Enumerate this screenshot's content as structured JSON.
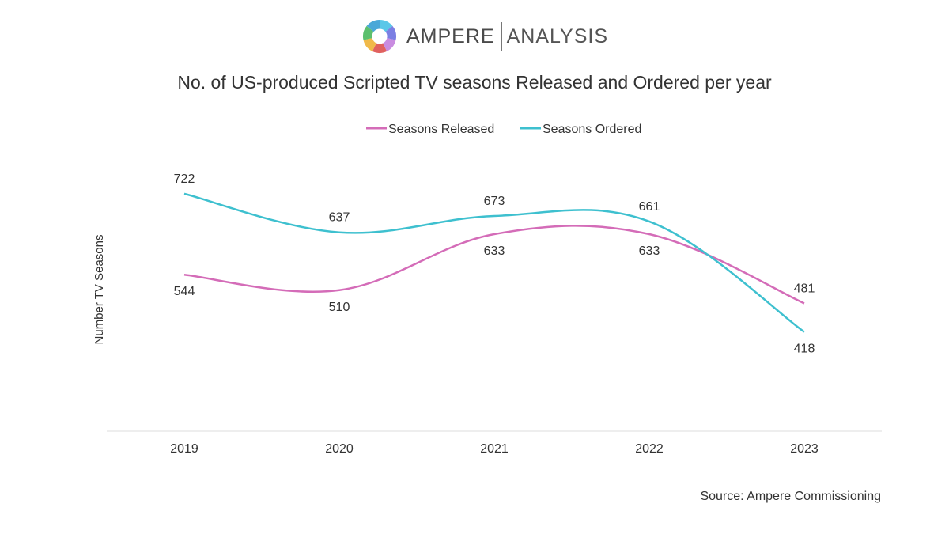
{
  "brand": {
    "name_part1": "AMPERE",
    "name_part2": "ANALYSIS",
    "logo_colors": [
      "#5bc7e8",
      "#7b7fe3",
      "#c98ce0",
      "#e0615f",
      "#f0b949",
      "#5cbf6e",
      "#4aa8d8"
    ]
  },
  "chart_data": {
    "type": "line",
    "title": "No. of US-produced Scripted TV seasons Released and Ordered per year",
    "ylabel": "Number TV Seasons",
    "xlabel": "",
    "categories": [
      "2019",
      "2020",
      "2021",
      "2022",
      "2023"
    ],
    "series": [
      {
        "name": "Seasons Released",
        "color": "#d46cb8",
        "values": [
          544,
          510,
          633,
          633,
          481
        ]
      },
      {
        "name": "Seasons Ordered",
        "color": "#3ec0cf",
        "values": [
          722,
          637,
          673,
          661,
          418
        ]
      }
    ],
    "ylim": [
      200,
      800
    ],
    "smooth": true,
    "grid": false,
    "legend_position": "top-center",
    "source": "Source: Ampere Commissioning"
  }
}
